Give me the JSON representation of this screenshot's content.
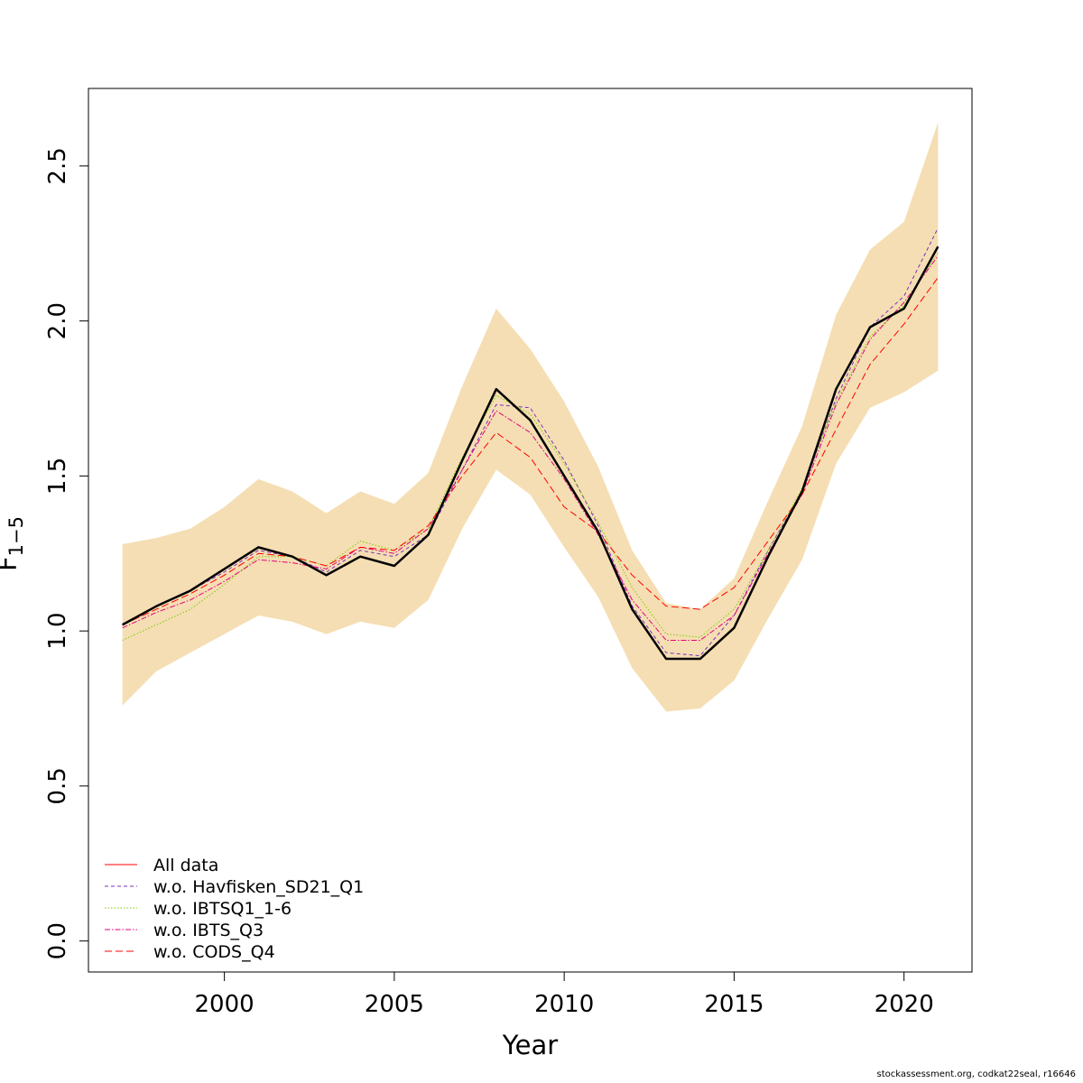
{
  "chart_data": {
    "type": "line",
    "xlabel": "Year",
    "ylabel": "F",
    "ylabel_subscript": "1−5",
    "xlim": [
      1996.0,
      2022.0
    ],
    "ylim": [
      -0.1,
      2.75
    ],
    "xticks": [
      2000,
      2005,
      2010,
      2015,
      2020
    ],
    "yticks": [
      0.0,
      0.5,
      1.0,
      1.5,
      2.0,
      2.5
    ],
    "ytick_labels": [
      "0.0",
      "0.5",
      "1.0",
      "1.5",
      "2.0",
      "2.5"
    ],
    "x": [
      1997,
      1998,
      1999,
      2000,
      2001,
      2002,
      2003,
      2004,
      2005,
      2006,
      2007,
      2008,
      2009,
      2010,
      2011,
      2012,
      2013,
      2014,
      2015,
      2016,
      2017,
      2018,
      2019,
      2020,
      2021
    ],
    "confidence_band": {
      "color": "#f5deb3",
      "lower": [
        0.76,
        0.87,
        0.93,
        0.99,
        1.05,
        1.03,
        0.99,
        1.03,
        1.01,
        1.1,
        1.33,
        1.52,
        1.44,
        1.27,
        1.11,
        0.88,
        0.74,
        0.75,
        0.84,
        1.04,
        1.23,
        1.54,
        1.72,
        1.77,
        1.84
      ],
      "upper": [
        1.28,
        1.3,
        1.33,
        1.4,
        1.49,
        1.45,
        1.38,
        1.45,
        1.41,
        1.51,
        1.79,
        2.04,
        1.91,
        1.74,
        1.53,
        1.26,
        1.09,
        1.07,
        1.17,
        1.42,
        1.66,
        2.02,
        2.23,
        2.32,
        2.64
      ]
    },
    "series": [
      {
        "name": "All data",
        "color": "#000000",
        "legend_color": "#ff0000",
        "dash": "solid",
        "width": 2.5,
        "values": [
          1.02,
          1.08,
          1.13,
          1.2,
          1.27,
          1.24,
          1.18,
          1.24,
          1.21,
          1.31,
          1.55,
          1.78,
          1.68,
          1.5,
          1.32,
          1.07,
          0.91,
          0.91,
          1.01,
          1.24,
          1.45,
          1.78,
          1.98,
          2.04,
          2.24
        ]
      },
      {
        "name": "w.o. Havfisken_SD21_Q1",
        "color": "#7b2fbe",
        "dash": "4,3",
        "width": 1,
        "values": [
          1.02,
          1.08,
          1.13,
          1.19,
          1.26,
          1.24,
          1.19,
          1.26,
          1.24,
          1.31,
          1.52,
          1.73,
          1.72,
          1.55,
          1.34,
          1.08,
          0.93,
          0.92,
          1.05,
          1.26,
          1.45,
          1.75,
          1.98,
          2.08,
          2.3
        ]
      },
      {
        "name": "w.o. IBTSQ1_1-6",
        "color": "#7ccd00",
        "dash": "1.5,2",
        "width": 1,
        "values": [
          0.97,
          1.02,
          1.07,
          1.15,
          1.24,
          1.24,
          1.21,
          1.29,
          1.26,
          1.33,
          1.56,
          1.76,
          1.7,
          1.54,
          1.35,
          1.14,
          0.99,
          0.98,
          1.07,
          1.26,
          1.46,
          1.74,
          1.95,
          2.05,
          2.22
        ]
      },
      {
        "name": "w.o. IBTS_Q3",
        "color": "#e6007e",
        "dash": "6,2,1.5,2",
        "width": 1,
        "values": [
          1.01,
          1.06,
          1.1,
          1.16,
          1.23,
          1.22,
          1.2,
          1.27,
          1.25,
          1.33,
          1.52,
          1.71,
          1.64,
          1.49,
          1.31,
          1.1,
          0.97,
          0.97,
          1.05,
          1.25,
          1.44,
          1.73,
          1.94,
          2.06,
          2.21
        ]
      },
      {
        "name": "w.o. CODS_Q4",
        "color": "#ff0000",
        "dash": "8,4",
        "width": 1,
        "values": [
          1.02,
          1.07,
          1.12,
          1.18,
          1.25,
          1.24,
          1.21,
          1.27,
          1.26,
          1.34,
          1.5,
          1.64,
          1.56,
          1.4,
          1.32,
          1.18,
          1.08,
          1.07,
          1.14,
          1.29,
          1.44,
          1.65,
          1.86,
          1.99,
          2.14
        ]
      }
    ],
    "legend_placement": "bottom-left",
    "grid": false
  },
  "footer": {
    "credit": "stockassessment.org, codkat22seal, r16646"
  }
}
